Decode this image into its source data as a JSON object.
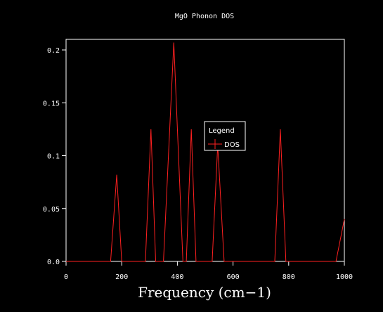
{
  "chart_data": {
    "type": "line",
    "title": "MgO Phonon DOS",
    "xlabel": "Frequency (cm−1)",
    "ylabel": "",
    "xlim": [
      0,
      1000
    ],
    "ylim": [
      0,
      0.21
    ],
    "xticks": [
      0,
      200,
      400,
      600,
      800,
      1000
    ],
    "xtick_labels": [
      "0",
      "200",
      "400",
      "600",
      "800",
      "1000"
    ],
    "yticks": [
      0,
      0.05,
      0.1,
      0.15,
      0.2
    ],
    "ytick_labels": [
      "0.0",
      "0.05",
      "0.1",
      "0.15",
      "0.2"
    ],
    "grid": false,
    "legend": {
      "title": "Legend",
      "position": "center-right"
    },
    "series": [
      {
        "name": "DOS",
        "color": "#ff2020",
        "x": [
          0,
          160,
          182,
          200,
          285,
          305,
          322,
          350,
          387,
          420,
          432,
          450,
          467,
          525,
          545,
          568,
          750,
          770,
          790,
          970,
          1000
        ],
        "y": [
          0,
          0,
          0.082,
          0,
          0,
          0.125,
          0,
          0,
          0.207,
          0,
          0,
          0.125,
          0,
          0,
          0.11,
          0,
          0,
          0.125,
          0,
          0,
          0.04
        ]
      }
    ]
  }
}
